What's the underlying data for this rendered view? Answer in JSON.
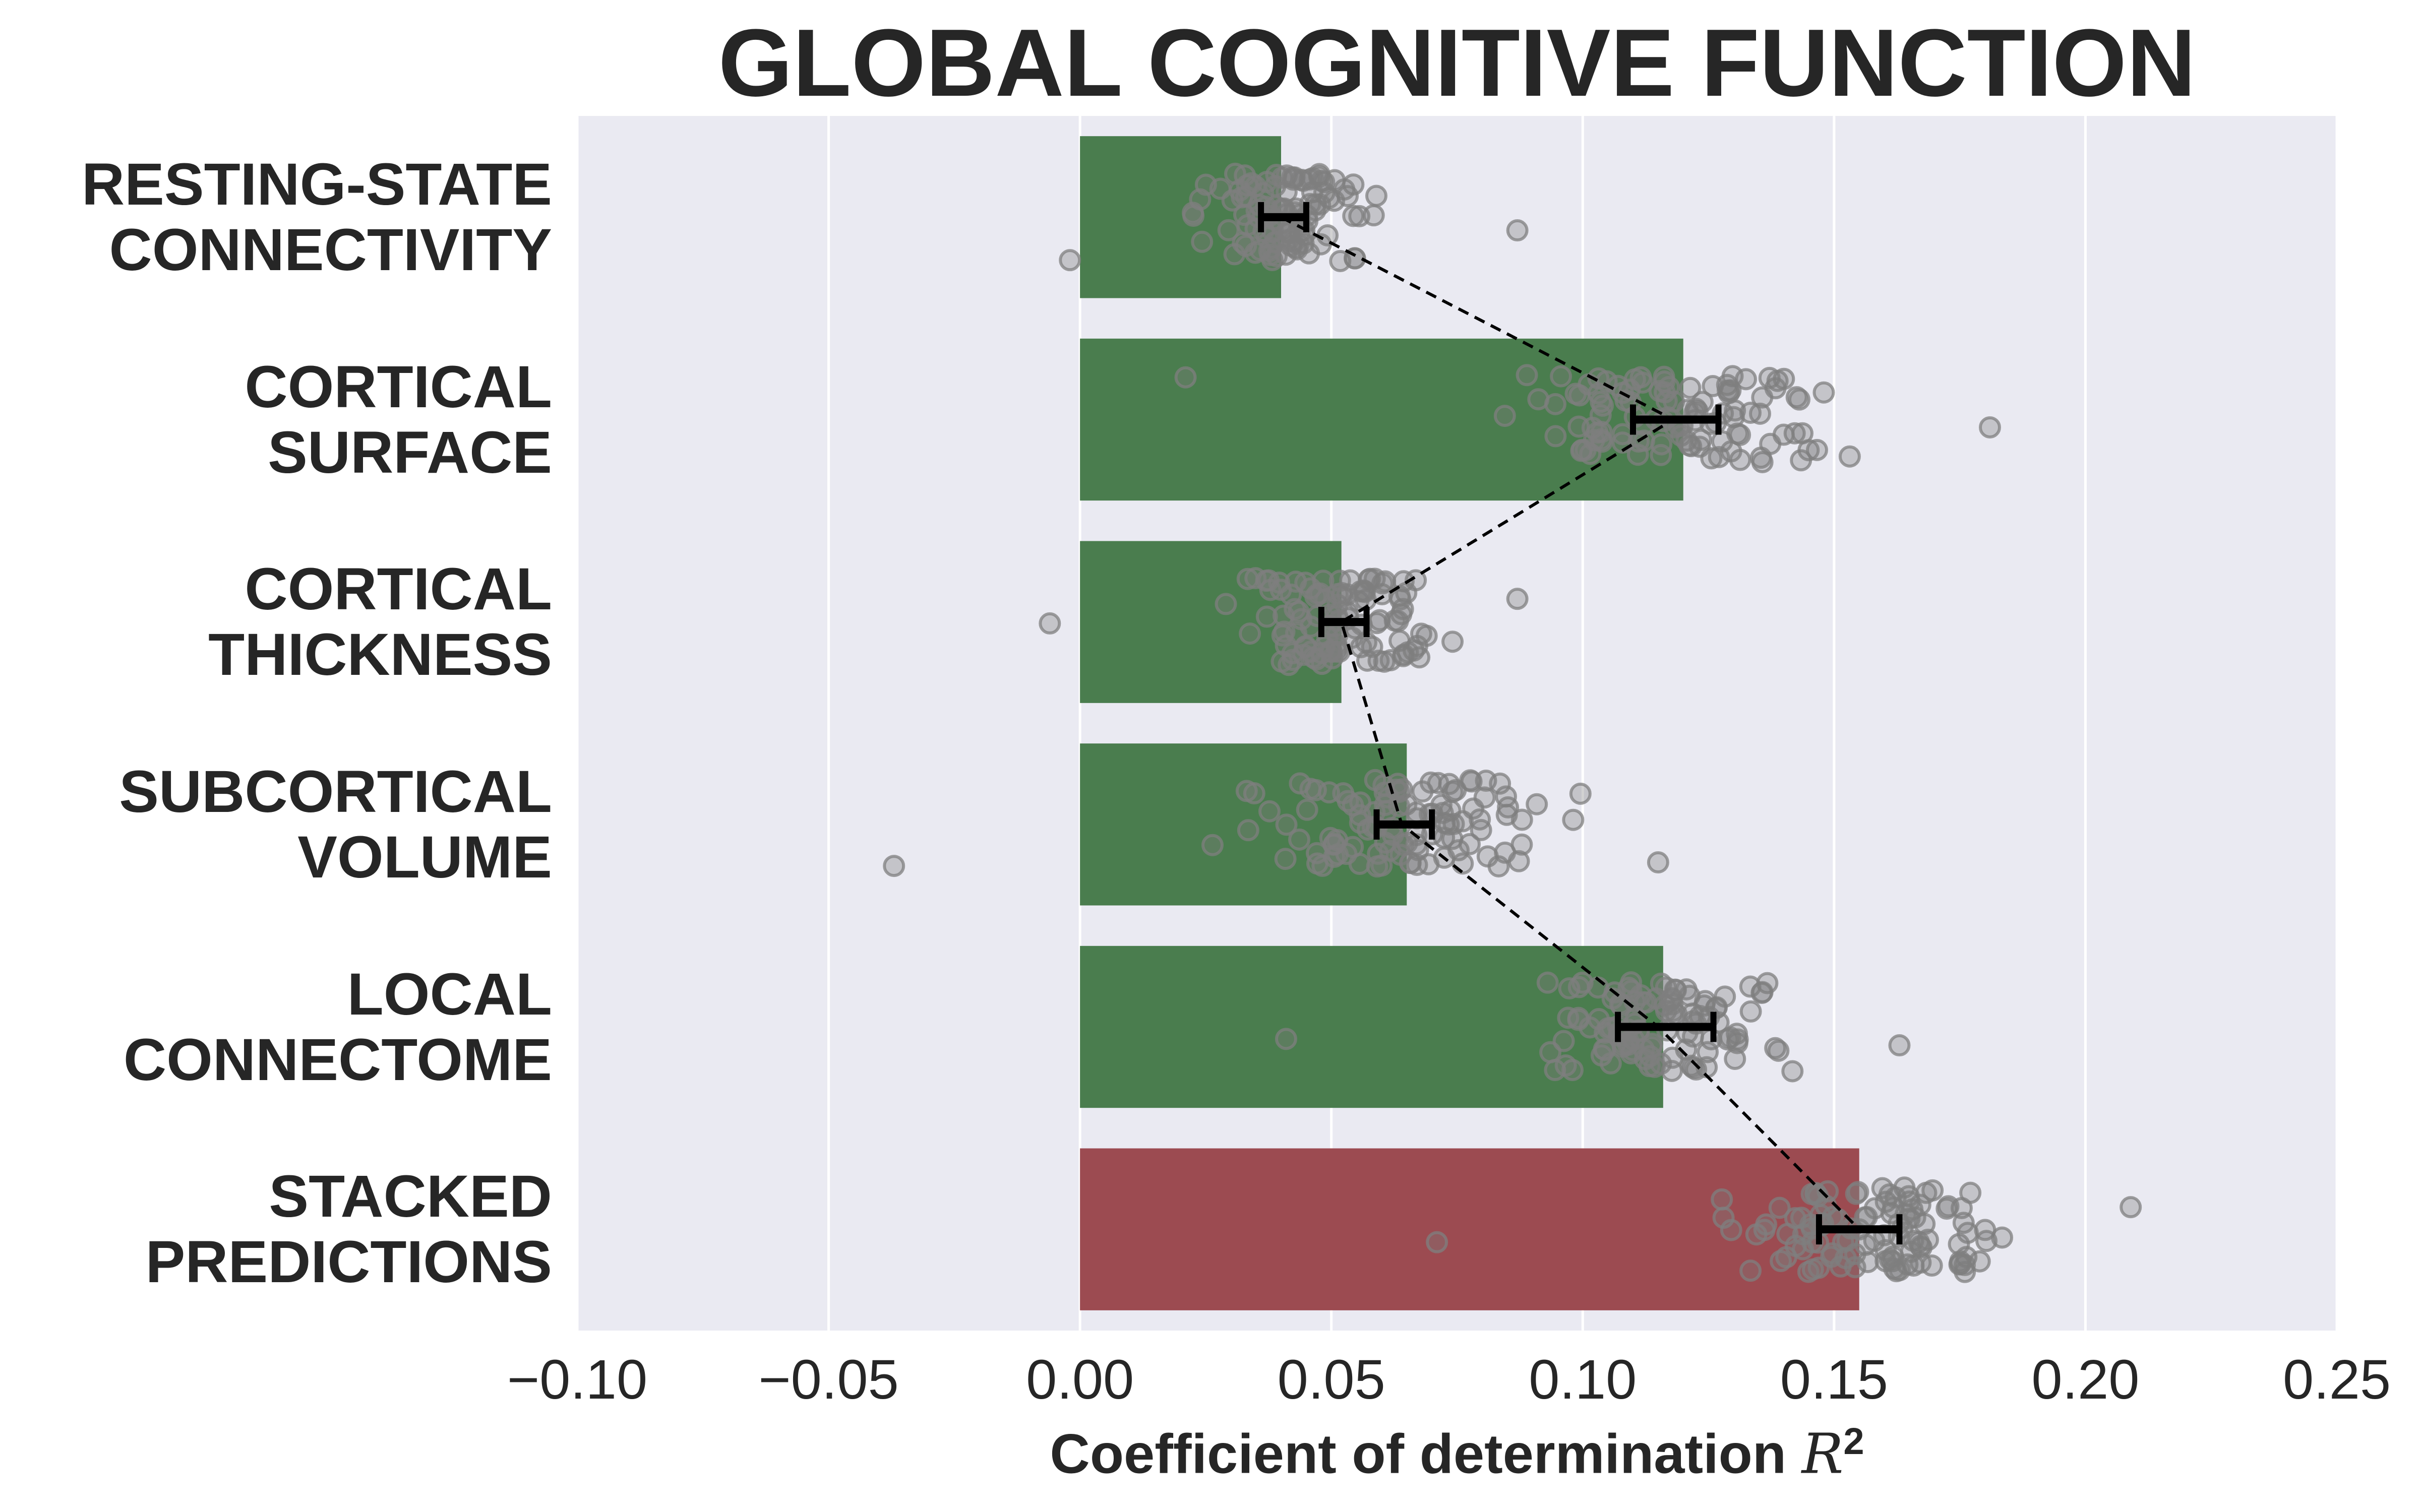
{
  "chart_data": {
    "type": "bar",
    "orientation": "horizontal",
    "title": "GLOBAL COGNITIVE FUNCTION",
    "xlabel": "Coefficient of determination",
    "xlabel_math": "R",
    "xlabel_exponent": "2",
    "xlim": [
      -0.1,
      0.25
    ],
    "xticks": [
      -0.1,
      -0.05,
      0.0,
      0.05,
      0.1,
      0.15,
      0.2,
      0.25
    ],
    "xtick_labels": [
      "−0.10",
      "−0.05",
      "0.00",
      "0.05",
      "0.10",
      "0.15",
      "0.20",
      "0.25"
    ],
    "grid": true,
    "categories": [
      [
        "RESTING-STATE",
        "CONNECTIVITY"
      ],
      [
        "CORTICAL",
        "SURFACE"
      ],
      [
        "CORTICAL",
        "THICKNESS"
      ],
      [
        "SUBCORTICAL",
        "VOLUME"
      ],
      [
        "LOCAL",
        "CONNECTOME"
      ],
      [
        "STACKED",
        "PREDICTIONS"
      ]
    ],
    "values": [
      0.04,
      0.12,
      0.052,
      0.065,
      0.116,
      0.155
    ],
    "bar_colors": [
      "#4a7d4e",
      "#4a7d4e",
      "#4a7d4e",
      "#4a7d4e",
      "#4a7d4e",
      "#9c4b51"
    ],
    "mean_errorbars": [
      {
        "center": 0.04,
        "low": 0.036,
        "high": 0.045
      },
      {
        "center": 0.118,
        "low": 0.11,
        "high": 0.127
      },
      {
        "center": 0.052,
        "low": 0.048,
        "high": 0.057
      },
      {
        "center": 0.064,
        "low": 0.059,
        "high": 0.07
      },
      {
        "center": 0.115,
        "low": 0.107,
        "high": 0.126
      },
      {
        "center": 0.155,
        "low": 0.147,
        "high": 0.163
      }
    ],
    "scatter_distribution": [
      {
        "min": -0.002,
        "max": 0.087,
        "mean": 0.04,
        "n": 110
      },
      {
        "min": 0.021,
        "max": 0.181,
        "mean": 0.118,
        "n": 110
      },
      {
        "min": -0.006,
        "max": 0.087,
        "mean": 0.052,
        "n": 110
      },
      {
        "min": -0.037,
        "max": 0.115,
        "mean": 0.064,
        "n": 110
      },
      {
        "min": 0.041,
        "max": 0.163,
        "mean": 0.115,
        "n": 110
      },
      {
        "min": 0.071,
        "max": 0.209,
        "mean": 0.155,
        "n": 110
      }
    ],
    "colors": {
      "background": "#eaeaf2",
      "grid": "#ffffff",
      "text": "#262626",
      "scatter_edge": "#7f7f7f",
      "errorbar": "#000000",
      "connector": "#000000"
    }
  }
}
